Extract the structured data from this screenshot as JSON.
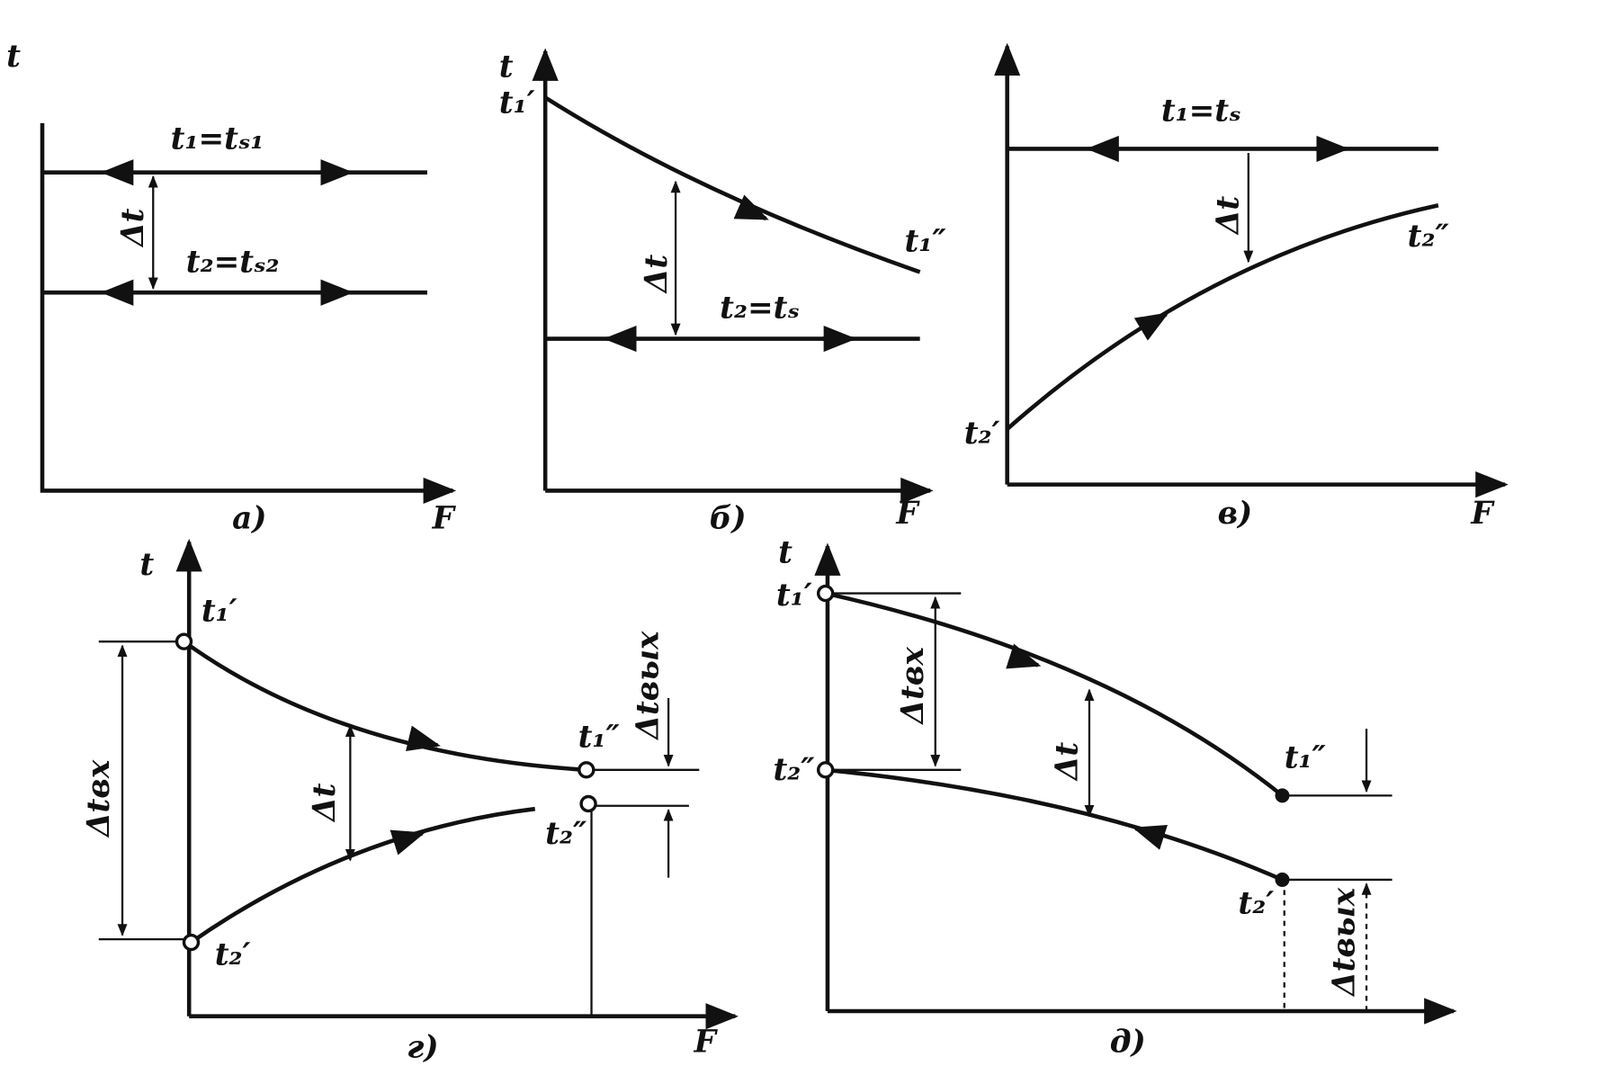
{
  "panels": [
    {
      "label": "а)",
      "y_axis": "t",
      "x_axis": "F",
      "texts": [
        "t₁=tₛ₁",
        "t₂=tₛ₂",
        "Δt"
      ]
    },
    {
      "label": "б)",
      "y_axis": "t",
      "x_axis": "F",
      "texts": [
        "t₁′",
        "t₁″",
        "Δt",
        "t₂=tₛ"
      ]
    },
    {
      "label": "в)",
      "x_axis": "F",
      "texts": [
        "t₁=tₛ",
        "Δt",
        "t₂″",
        "t₂′"
      ]
    },
    {
      "label": "г)",
      "y_axis": "t",
      "x_axis": "F",
      "texts": [
        "t₁′",
        "t₂′",
        "t₁″",
        "t₂″",
        "Δtвх",
        "Δt",
        "Δtвых"
      ]
    },
    {
      "label": "д)",
      "y_axis": "t",
      "texts": [
        "t₁′",
        "t₂″",
        "t₁″",
        "t₂′",
        "Δtвх",
        "Δt",
        "Δtвых"
      ]
    }
  ]
}
